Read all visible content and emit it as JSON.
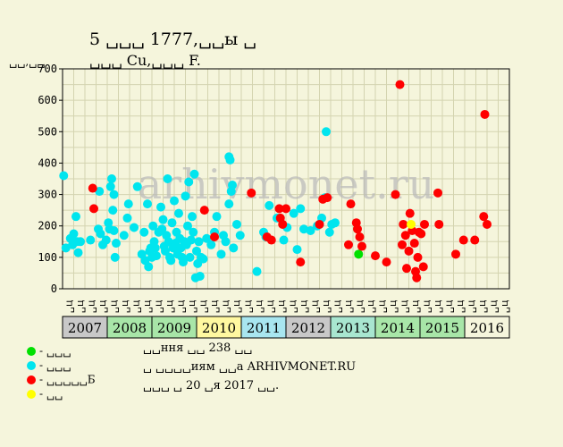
{
  "header": {
    "title": "5 ␣␣␣ 1777,␣␣ы ␣",
    "subtitle": "␣␣␣ Cu,␣␣␣ F.",
    "y_unit": "␣␣,␣␣"
  },
  "watermark": "arhivmonet.ru",
  "legend": [
    {
      "color": "#00e000",
      "label": "- ␣␣␣"
    },
    {
      "color": "#00e5ee",
      "label": "- ␣␣␣"
    },
    {
      "color": "#ff0000",
      "label": "- ␣␣␣␣␣Б"
    },
    {
      "color": "#ffff00",
      "label": "- ␣␣"
    }
  ],
  "notes": [
    "␣␣ння ␣␣ 238 ␣␣",
    "␣ ␣␣␣␣иям ␣␣а ARHIVMONET.RU",
    "␣␣␣ ␣ 20 ␣я 2017 ␣␣."
  ],
  "chart_data": {
    "type": "scatter",
    "ylim": [
      0,
      700
    ],
    "yticks": [
      0,
      100,
      200,
      300,
      400,
      500,
      600,
      700
    ],
    "grid": true,
    "x_sublabels": [
      "␣ц",
      "␣ц",
      "␣ц",
      "␣ц",
      "␣ц",
      "␣ц",
      "␣ц",
      "␣ц",
      "␣ц",
      "␣ц",
      "␣ц",
      "␣ц",
      "␣ц",
      "␣ц",
      "␣ц",
      "␣ц",
      "␣ц",
      "␣ц",
      "␣ц",
      "␣ц",
      "␣ц",
      "␣ц",
      "␣ц",
      "␣ц",
      "␣ц",
      "␣ц",
      "␣ц",
      "␣ц",
      "␣ц",
      "␣ц",
      "␣ц",
      "␣ц",
      "␣ц",
      "␣ц",
      "␣ц",
      "␣ц",
      "␣ц",
      "␣ц",
      "␣ц",
      "␣ц"
    ],
    "years": [
      {
        "label": "2007",
        "color": "#c8c8c8"
      },
      {
        "label": "2008",
        "color": "#a8e6a8"
      },
      {
        "label": "2009",
        "color": "#a8e6a8"
      },
      {
        "label": "2010",
        "color": "#fff8a0"
      },
      {
        "label": "2011",
        "color": "#a8e6f0"
      },
      {
        "label": "2012",
        "color": "#c8c8c8"
      },
      {
        "label": "2013",
        "color": "#a8e6d0"
      },
      {
        "label": "2014",
        "color": "#a8e6a8"
      },
      {
        "label": "2015",
        "color": "#a8e6a8"
      },
      {
        "label": "2016",
        "color": "#f5f5dc"
      }
    ],
    "series": [
      {
        "name": "- ␣␣␣",
        "color": "#00e000",
        "points": [
          [
            26.5,
            110
          ]
        ]
      },
      {
        "name": "- ␣␣␣",
        "color": "#00e5ee",
        "points": [
          [
            0.1,
            360
          ],
          [
            0.3,
            130
          ],
          [
            0.7,
            160
          ],
          [
            0.9,
            140
          ],
          [
            1.0,
            175
          ],
          [
            1.3,
            150
          ],
          [
            1.2,
            230
          ],
          [
            1.4,
            115
          ],
          [
            1.6,
            150
          ],
          [
            2.5,
            155
          ],
          [
            3.2,
            190
          ],
          [
            3.4,
            175
          ],
          [
            3.3,
            310
          ],
          [
            3.6,
            140
          ],
          [
            3.9,
            155
          ],
          [
            4.1,
            210
          ],
          [
            4.2,
            190
          ],
          [
            4.3,
            325
          ],
          [
            4.4,
            350
          ],
          [
            4.5,
            250
          ],
          [
            4.6,
            300
          ],
          [
            4.7,
            100
          ],
          [
            4.8,
            145
          ],
          [
            4.6,
            185
          ],
          [
            5.5,
            170
          ],
          [
            5.8,
            225
          ],
          [
            5.9,
            270
          ],
          [
            6.4,
            195
          ],
          [
            6.7,
            325
          ],
          [
            7.1,
            110
          ],
          [
            7.3,
            180
          ],
          [
            7.4,
            90
          ],
          [
            7.6,
            270
          ],
          [
            7.7,
            70
          ],
          [
            7.8,
            120
          ],
          [
            7.9,
            130
          ],
          [
            8.0,
            100
          ],
          [
            8.1,
            200
          ],
          [
            8.2,
            150
          ],
          [
            8.3,
            130
          ],
          [
            8.4,
            105
          ],
          [
            8.6,
            180
          ],
          [
            8.8,
            260
          ],
          [
            8.9,
            190
          ],
          [
            9.0,
            220
          ],
          [
            9.1,
            135
          ],
          [
            9.2,
            120
          ],
          [
            9.3,
            170
          ],
          [
            9.4,
            350
          ],
          [
            9.5,
            150
          ],
          [
            9.6,
            100
          ],
          [
            9.7,
            90
          ],
          [
            9.8,
            210
          ],
          [
            9.9,
            130
          ],
          [
            10.0,
            280
          ],
          [
            10.1,
            145
          ],
          [
            10.2,
            180
          ],
          [
            10.3,
            110
          ],
          [
            10.4,
            240
          ],
          [
            10.5,
            160
          ],
          [
            10.6,
            130
          ],
          [
            10.7,
            100
          ],
          [
            10.8,
            85
          ],
          [
            10.9,
            150
          ],
          [
            11.0,
            295
          ],
          [
            11.1,
            140
          ],
          [
            11.2,
            200
          ],
          [
            11.3,
            340
          ],
          [
            11.4,
            100
          ],
          [
            11.5,
            155
          ],
          [
            11.6,
            230
          ],
          [
            11.7,
            180
          ],
          [
            11.8,
            365
          ],
          [
            11.9,
            35
          ],
          [
            12.0,
            120
          ],
          [
            12.1,
            80
          ],
          [
            12.2,
            150
          ],
          [
            12.3,
            40
          ],
          [
            12.4,
            100
          ],
          [
            12.6,
            95
          ],
          [
            12.9,
            160
          ],
          [
            13.3,
            140
          ],
          [
            13.6,
            180
          ],
          [
            13.8,
            230
          ],
          [
            14.2,
            110
          ],
          [
            14.4,
            170
          ],
          [
            14.6,
            150
          ],
          [
            14.9,
            420
          ],
          [
            15.0,
            410
          ],
          [
            15.1,
            310
          ],
          [
            15.2,
            330
          ],
          [
            14.9,
            270
          ],
          [
            15.3,
            130
          ],
          [
            15.6,
            205
          ],
          [
            15.9,
            170
          ],
          [
            17.4,
            55
          ],
          [
            18.0,
            180
          ],
          [
            18.2,
            165
          ],
          [
            18.5,
            265
          ],
          [
            19.2,
            225
          ],
          [
            19.8,
            155
          ],
          [
            20.1,
            195
          ],
          [
            20.7,
            240
          ],
          [
            21.0,
            125
          ],
          [
            21.3,
            255
          ],
          [
            21.6,
            190
          ],
          [
            22.2,
            185
          ],
          [
            22.8,
            200
          ],
          [
            23.0,
            205
          ],
          [
            23.2,
            225
          ],
          [
            23.5,
            290
          ],
          [
            23.6,
            500
          ],
          [
            23.9,
            180
          ],
          [
            24.1,
            205
          ],
          [
            24.4,
            210
          ]
        ]
      },
      {
        "name": "- ␣␣␣␣␣Б",
        "color": "#ff0000",
        "points": [
          [
            2.7,
            320
          ],
          [
            2.8,
            255
          ],
          [
            12.7,
            250
          ],
          [
            13.6,
            165
          ],
          [
            16.9,
            305
          ],
          [
            18.3,
            165
          ],
          [
            18.7,
            155
          ],
          [
            19.4,
            255
          ],
          [
            19.5,
            225
          ],
          [
            19.7,
            205
          ],
          [
            20.0,
            255
          ],
          [
            21.3,
            85
          ],
          [
            23.0,
            205
          ],
          [
            23.3,
            285
          ],
          [
            23.7,
            290
          ],
          [
            25.6,
            140
          ],
          [
            25.8,
            270
          ],
          [
            26.3,
            210
          ],
          [
            26.4,
            190
          ],
          [
            26.6,
            165
          ],
          [
            26.8,
            135
          ],
          [
            28.0,
            105
          ],
          [
            29.0,
            85
          ],
          [
            29.8,
            300
          ],
          [
            30.2,
            650
          ],
          [
            30.4,
            140
          ],
          [
            30.5,
            205
          ],
          [
            30.7,
            170
          ],
          [
            30.8,
            65
          ],
          [
            31.0,
            120
          ],
          [
            31.1,
            240
          ],
          [
            31.3,
            185
          ],
          [
            31.5,
            145
          ],
          [
            31.6,
            55
          ],
          [
            31.7,
            35
          ],
          [
            31.8,
            100
          ],
          [
            31.9,
            180
          ],
          [
            32.1,
            175
          ],
          [
            32.3,
            70
          ],
          [
            32.4,
            205
          ],
          [
            33.6,
            305
          ],
          [
            33.7,
            205
          ],
          [
            35.2,
            110
          ],
          [
            35.9,
            155
          ],
          [
            36.9,
            155
          ],
          [
            37.7,
            230
          ],
          [
            37.8,
            555
          ],
          [
            38.0,
            205
          ]
        ]
      },
      {
        "name": "- ␣␣",
        "color": "#ffff00",
        "points": [
          [
            31.2,
            205
          ]
        ]
      }
    ]
  }
}
